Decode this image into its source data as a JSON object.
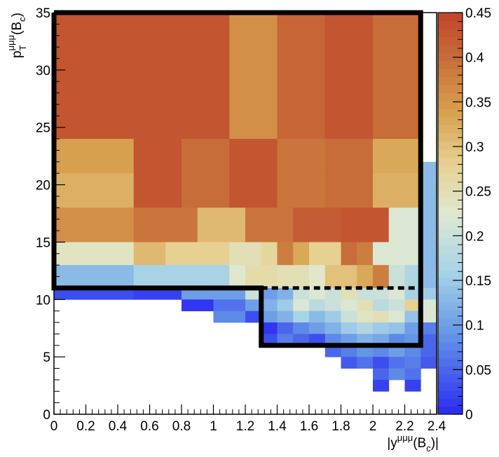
{
  "chart_data": {
    "type": "heatmap",
    "xlim": [
      0,
      2.4
    ],
    "ylim": [
      0,
      35
    ],
    "zlim": [
      0,
      0.45
    ],
    "xticks": [
      0,
      0.2,
      0.4,
      0.6,
      0.8,
      1,
      1.2,
      1.4,
      1.6,
      1.8,
      2,
      2.2,
      2.4
    ],
    "yticks": [
      0,
      5,
      10,
      15,
      20,
      25,
      30,
      35
    ],
    "zticks": [
      0,
      0.05,
      0.1,
      0.15,
      0.2,
      0.25,
      0.3,
      0.35,
      0.4,
      0.45
    ],
    "xlabel": {
      "open": "|y",
      "sup": "μμμ",
      "arg": "(B",
      "sub": "c",
      "close": ")|"
    },
    "ylabel": {
      "base": "p",
      "sub": "T",
      "sup": "μμμ",
      "arg": "(B",
      "argsub": "c",
      "close": ")"
    },
    "colorscale": [
      [
        0,
        "#2a2af2"
      ],
      [
        0.2,
        "#6496e6"
      ],
      [
        0.35,
        "#a6d2e6"
      ],
      [
        0.5,
        "#dfe9d2"
      ],
      [
        0.62,
        "#e6d294"
      ],
      [
        0.75,
        "#d8a250"
      ],
      [
        0.88,
        "#c8703a"
      ],
      [
        1,
        "#c0452a"
      ]
    ],
    "outline": [
      [
        0,
        35
      ],
      [
        2.3,
        35
      ],
      [
        2.3,
        6
      ],
      [
        1.3,
        6
      ],
      [
        1.3,
        11
      ],
      [
        0,
        11
      ],
      [
        0,
        35
      ]
    ],
    "dashed": [
      [
        1.3,
        11
      ],
      [
        2.3,
        11
      ]
    ],
    "cells": [
      [
        0,
        1.1,
        24,
        35,
        0.43
      ],
      [
        1.1,
        1.4,
        24,
        35,
        0.36
      ],
      [
        1.4,
        1.7,
        24,
        35,
        0.41
      ],
      [
        1.7,
        2.0,
        24,
        35,
        0.43
      ],
      [
        2.0,
        2.3,
        24,
        35,
        0.4
      ],
      [
        0,
        0.5,
        21,
        24,
        0.34
      ],
      [
        0.5,
        0.8,
        21,
        24,
        0.43
      ],
      [
        0.8,
        1.1,
        21,
        24,
        0.4
      ],
      [
        1.1,
        1.4,
        21,
        24,
        0.43
      ],
      [
        1.4,
        1.7,
        21,
        24,
        0.39
      ],
      [
        1.7,
        2.0,
        21,
        24,
        0.4
      ],
      [
        2.0,
        2.3,
        21,
        24,
        0.33
      ],
      [
        0,
        0.5,
        18,
        21,
        0.32
      ],
      [
        0.5,
        0.8,
        18,
        21,
        0.43
      ],
      [
        0.8,
        1.1,
        18,
        21,
        0.4
      ],
      [
        1.1,
        1.4,
        18,
        21,
        0.43
      ],
      [
        1.4,
        1.7,
        18,
        21,
        0.39
      ],
      [
        1.7,
        2.0,
        18,
        21,
        0.4
      ],
      [
        2.0,
        2.3,
        18,
        21,
        0.32
      ],
      [
        0,
        0.5,
        15,
        18,
        0.36
      ],
      [
        0.5,
        0.9,
        15,
        18,
        0.39
      ],
      [
        0.9,
        1.2,
        15,
        18,
        0.31
      ],
      [
        1.2,
        1.5,
        15,
        18,
        0.39
      ],
      [
        1.5,
        1.8,
        15,
        18,
        0.42
      ],
      [
        1.8,
        2.1,
        15,
        18,
        0.43
      ],
      [
        2.1,
        2.3,
        15,
        18,
        0.22
      ],
      [
        0,
        0.5,
        13,
        15,
        0.24
      ],
      [
        0.5,
        0.7,
        13,
        15,
        0.31
      ],
      [
        0.7,
        1.1,
        13,
        15,
        0.28
      ],
      [
        1.1,
        1.3,
        13,
        15,
        0.25
      ],
      [
        1.3,
        1.4,
        13,
        15,
        0.27
      ],
      [
        1.4,
        1.5,
        13,
        15,
        0.38
      ],
      [
        1.5,
        1.6,
        13,
        15,
        0.33
      ],
      [
        1.6,
        1.8,
        13,
        15,
        0.28
      ],
      [
        1.8,
        1.9,
        13,
        15,
        0.4
      ],
      [
        1.9,
        2.0,
        13,
        15,
        0.38
      ],
      [
        2.0,
        2.3,
        13,
        15,
        0.22
      ],
      [
        0,
        0.5,
        11,
        13,
        0.13
      ],
      [
        0.5,
        1.1,
        11,
        13,
        0.16
      ],
      [
        1.1,
        1.2,
        11,
        13,
        0.23
      ],
      [
        1.2,
        1.4,
        11,
        13,
        0.26
      ],
      [
        1.4,
        1.6,
        11,
        13,
        0.25
      ],
      [
        1.6,
        1.7,
        11,
        13,
        0.23
      ],
      [
        1.7,
        1.9,
        11,
        13,
        0.3
      ],
      [
        1.9,
        2.0,
        11,
        13,
        0.33
      ],
      [
        2.0,
        2.1,
        11,
        13,
        0.38
      ],
      [
        2.1,
        2.2,
        11,
        13,
        0.2
      ],
      [
        2.2,
        2.3,
        11,
        13,
        0.17
      ],
      [
        0,
        0.5,
        10,
        11,
        0.03
      ],
      [
        0.5,
        0.8,
        10,
        11,
        0.02
      ],
      [
        0.8,
        1.2,
        10,
        11,
        0.1
      ],
      [
        1.2,
        1.3,
        10,
        11,
        0.2
      ],
      [
        1.3,
        1.4,
        10,
        11,
        0.1
      ],
      [
        1.4,
        1.5,
        10,
        11,
        0.12
      ],
      [
        1.5,
        1.6,
        10,
        11,
        0.2
      ],
      [
        1.6,
        1.7,
        10,
        11,
        0.22
      ],
      [
        1.7,
        1.8,
        10,
        11,
        0.2
      ],
      [
        1.8,
        1.9,
        10,
        11,
        0.25
      ],
      [
        1.9,
        2.1,
        10,
        11,
        0.2
      ],
      [
        2.1,
        2.2,
        10,
        11,
        0.22
      ],
      [
        2.2,
        2.3,
        10,
        11,
        0.16
      ],
      [
        0.8,
        1.0,
        9,
        10,
        0.01
      ],
      [
        1.0,
        1.2,
        9,
        10,
        0.06
      ],
      [
        1.2,
        1.3,
        9,
        10,
        0.1
      ],
      [
        1.3,
        1.4,
        9,
        10,
        0.12
      ],
      [
        1.4,
        1.5,
        9,
        10,
        0.15
      ],
      [
        1.5,
        1.6,
        9,
        10,
        0.22
      ],
      [
        1.6,
        1.7,
        9,
        10,
        0.18
      ],
      [
        1.7,
        1.8,
        9,
        10,
        0.2
      ],
      [
        1.8,
        1.9,
        9,
        10,
        0.22
      ],
      [
        1.9,
        2.0,
        9,
        10,
        0.25
      ],
      [
        2.0,
        2.1,
        9,
        10,
        0.18
      ],
      [
        2.1,
        2.2,
        9,
        10,
        0.2
      ],
      [
        2.2,
        2.3,
        9,
        10,
        0.28
      ],
      [
        1.0,
        1.2,
        8,
        9,
        0.08
      ],
      [
        1.2,
        1.3,
        8,
        9,
        0.03
      ],
      [
        1.3,
        1.4,
        8,
        9,
        0.1
      ],
      [
        1.4,
        1.5,
        8,
        9,
        0.12
      ],
      [
        1.5,
        1.6,
        8,
        9,
        0.16
      ],
      [
        1.6,
        1.7,
        8,
        9,
        0.13
      ],
      [
        1.7,
        1.8,
        8,
        9,
        0.15
      ],
      [
        1.8,
        1.9,
        8,
        9,
        0.2
      ],
      [
        1.9,
        2.0,
        8,
        9,
        0.24
      ],
      [
        2.0,
        2.1,
        8,
        9,
        0.25
      ],
      [
        2.1,
        2.2,
        8,
        9,
        0.22
      ],
      [
        2.2,
        2.3,
        8,
        9,
        0.14
      ],
      [
        1.3,
        1.4,
        7,
        8,
        0.01
      ],
      [
        1.4,
        1.5,
        7,
        8,
        0.05
      ],
      [
        1.5,
        1.6,
        7,
        8,
        0.08
      ],
      [
        1.6,
        1.7,
        7,
        8,
        0.1
      ],
      [
        1.7,
        1.8,
        7,
        8,
        0.12
      ],
      [
        1.8,
        1.9,
        7,
        8,
        0.15
      ],
      [
        1.9,
        2.0,
        7,
        8,
        0.17
      ],
      [
        2.0,
        2.1,
        7,
        8,
        0.15
      ],
      [
        2.1,
        2.2,
        7,
        8,
        0.14
      ],
      [
        2.2,
        2.3,
        7,
        8,
        0.1
      ],
      [
        1.3,
        1.4,
        6,
        7,
        0.03
      ],
      [
        1.4,
        1.5,
        6,
        7,
        0.07
      ],
      [
        1.5,
        1.6,
        6,
        7,
        0.05
      ],
      [
        1.6,
        1.7,
        6,
        7,
        0.03
      ],
      [
        1.7,
        1.8,
        6,
        7,
        0.08
      ],
      [
        1.8,
        1.9,
        6,
        7,
        0.1
      ],
      [
        1.9,
        2.0,
        6,
        7,
        0.12
      ],
      [
        2.0,
        2.1,
        6,
        7,
        0.11
      ],
      [
        2.1,
        2.2,
        6,
        7,
        0.08
      ],
      [
        2.2,
        2.3,
        6,
        7,
        0.09
      ],
      [
        2.3,
        2.4,
        6,
        7,
        0.05
      ],
      [
        1.7,
        1.8,
        5,
        6,
        0.05
      ],
      [
        1.8,
        1.9,
        5,
        6,
        0.07
      ],
      [
        1.9,
        2.0,
        5,
        6,
        0.09
      ],
      [
        2.0,
        2.1,
        5,
        6,
        0.08
      ],
      [
        2.1,
        2.2,
        5,
        6,
        0.1
      ],
      [
        2.2,
        2.3,
        5,
        6,
        0.08
      ],
      [
        2.3,
        2.4,
        5,
        6,
        0.05
      ],
      [
        1.8,
        1.9,
        4,
        5,
        0.04
      ],
      [
        1.9,
        2.0,
        4,
        5,
        0.06
      ],
      [
        2.0,
        2.1,
        4,
        5,
        0.03
      ],
      [
        2.1,
        2.2,
        4,
        5,
        0.06
      ],
      [
        2.2,
        2.3,
        4,
        5,
        0.07
      ],
      [
        2.3,
        2.4,
        4,
        5,
        0.04
      ],
      [
        2.0,
        2.1,
        3,
        4,
        0.05
      ],
      [
        2.1,
        2.2,
        3,
        4,
        0.08
      ],
      [
        2.2,
        2.3,
        3,
        4,
        0.06
      ],
      [
        2.0,
        2.1,
        2,
        3,
        0.02
      ],
      [
        2.2,
        2.3,
        2,
        3,
        0.02
      ],
      [
        2.3,
        2.4,
        11,
        22,
        0.13
      ],
      [
        2.3,
        2.4,
        10,
        11,
        0.15
      ],
      [
        2.3,
        2.4,
        8,
        10,
        0.22
      ],
      [
        2.3,
        2.4,
        7,
        8,
        0.07
      ]
    ]
  }
}
